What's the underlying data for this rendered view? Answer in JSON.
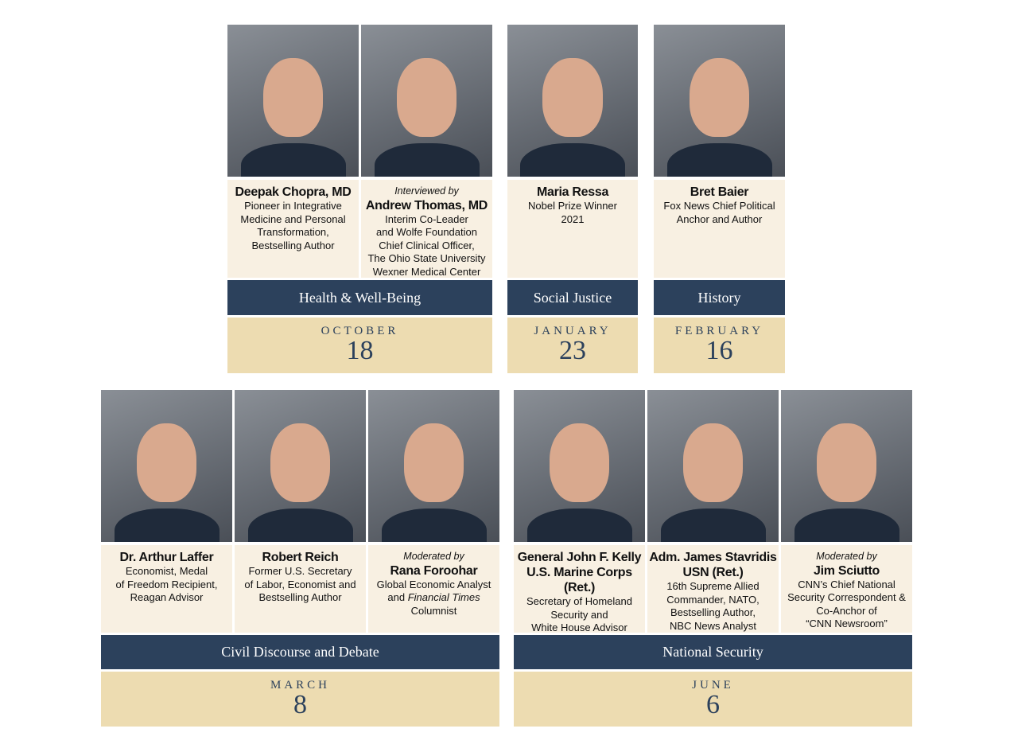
{
  "colors": {
    "navy": "#2c415c",
    "cream": "#f8f0e2",
    "tan": "#eddcb1"
  },
  "groups": [
    {
      "topic": "Health & Well-Being",
      "month": "OCTOBER",
      "day": "18",
      "people": [
        {
          "name": "Deepak Chopra, MD",
          "lines": [
            "Pioneer in Integrative",
            "Medicine and Personal",
            "Transformation,",
            "Bestselling Author"
          ]
        },
        {
          "pre": "Interviewed by",
          "name": "Andrew Thomas, MD",
          "lines": [
            "Interim Co-Leader",
            "and Wolfe Foundation",
            "Chief Clinical Officer,",
            "The Ohio State University",
            "Wexner Medical Center"
          ]
        }
      ]
    },
    {
      "topic": "Social Justice",
      "month": "JANUARY",
      "day": "23",
      "people": [
        {
          "name": "Maria Ressa",
          "lines": [
            "Nobel Prize Winner",
            "2021"
          ]
        }
      ]
    },
    {
      "topic": "History",
      "month": "FEBRUARY",
      "day": "16",
      "people": [
        {
          "name": "Bret Baier",
          "lines": [
            "Fox News Chief Political",
            "Anchor and Author"
          ]
        }
      ]
    },
    {
      "topic": "Civil Discourse and Debate",
      "month": "MARCH",
      "day": "8",
      "people": [
        {
          "name": "Dr. Arthur Laffer",
          "lines": [
            "Economist, Medal",
            "of Freedom Recipient,",
            "Reagan Advisor"
          ]
        },
        {
          "name": "Robert Reich",
          "lines": [
            "Former U.S. Secretary",
            "of Labor, Economist and",
            "Bestselling Author"
          ]
        },
        {
          "pre": "Moderated by",
          "name": "Rana Foroohar",
          "lines": [
            "Global Economic Analyst",
            {
              "text": "and ",
              "italic": "Financial Times"
            },
            "Columnist"
          ]
        }
      ]
    },
    {
      "topic": "National Security",
      "month": "JUNE",
      "day": "6",
      "people": [
        {
          "name": "General John F. Kelly",
          "name2": "U.S. Marine Corps (Ret.)",
          "lines": [
            "Secretary of Homeland",
            "Security and",
            "White House Advisor"
          ]
        },
        {
          "name": "Adm. James Stavridis",
          "name2": "USN (Ret.)",
          "lines": [
            "16th Supreme Allied",
            "Commander, NATO,",
            "Bestselling Author,",
            "NBC News Analyst"
          ]
        },
        {
          "pre": "Moderated by",
          "name": "Jim Sciutto",
          "lines": [
            "CNN’s Chief National",
            "Security Correspondent &",
            "Co-Anchor of",
            "“CNN Newsroom”"
          ]
        }
      ]
    }
  ]
}
